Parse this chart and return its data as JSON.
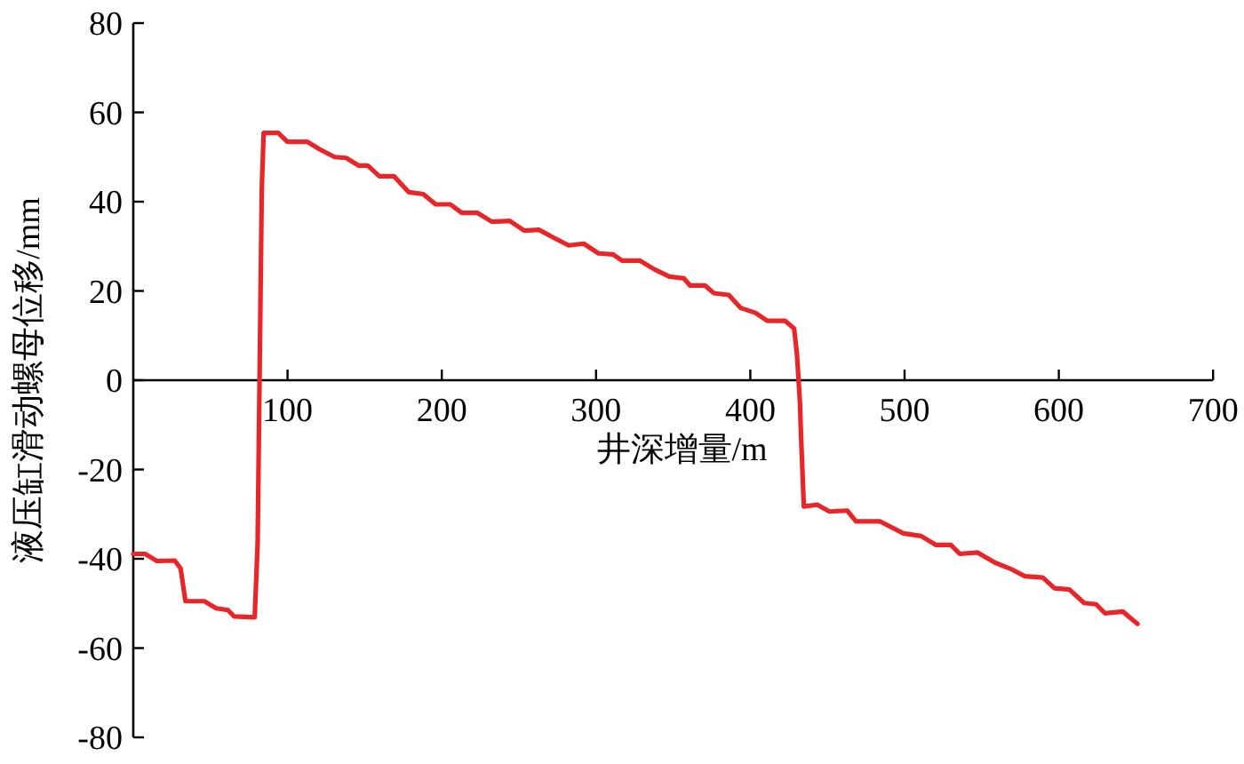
{
  "chart_data": {
    "type": "line",
    "xlabel": "井深增量/m",
    "ylabel": "液压缸滑动螺母位移/mm",
    "xlim": [
      0,
      700
    ],
    "ylim": [
      -80,
      80
    ],
    "xticks": [
      100,
      200,
      300,
      400,
      500,
      600,
      700
    ],
    "yticks": [
      -80,
      -60,
      -40,
      -20,
      0,
      20,
      40,
      60,
      80
    ],
    "series": [
      {
        "color": "#e8262a",
        "x": [
          0,
          7.7,
          15.3,
          26.9,
          30.7,
          33.8,
          46,
          53.8,
          61.4,
          65.3,
          78.7,
          80.6,
          83.3,
          84.5,
          94,
          99.9,
          113,
          121,
          130.5,
          138,
          146,
          152,
          159.5,
          169,
          178.7,
          188,
          196,
          205.5,
          213,
          223,
          232.5,
          244,
          253.5,
          263,
          272.7,
          282.3,
          292,
          301.6,
          311,
          316.8,
          328.3,
          338,
          347.6,
          357,
          361,
          370.7,
          376.4,
          386,
          393.7,
          403.3,
          411,
          422.6,
          428.4,
          430.3,
          432.2,
          432.8,
          434.7,
          443.5,
          451.3,
          462.8,
          468.5,
          483.9,
          499.2,
          510.7,
          520.4,
          530,
          535.8,
          547.3,
          558.8,
          568.4,
          578,
          589.6,
          597.2,
          606.9,
          616.4,
          624.2,
          629.9,
          641.4,
          651
        ],
        "values": [
          -38.9,
          -38.9,
          -40.5,
          -40.4,
          -42.2,
          -49.5,
          -49.5,
          -51.1,
          -51.5,
          -52.9,
          -53.1,
          -36.9,
          42.7,
          55.4,
          55.4,
          53.4,
          53.4,
          51.7,
          50,
          49.8,
          48.1,
          48.1,
          45.7,
          45.7,
          42.1,
          41.7,
          39.4,
          39.4,
          37.5,
          37.5,
          35.5,
          35.7,
          33.5,
          33.7,
          31.9,
          30.2,
          30.6,
          28.4,
          28.2,
          26.8,
          26.8,
          24.8,
          23.2,
          22.8,
          21.2,
          21.2,
          19.5,
          19.1,
          16.2,
          15.1,
          13.3,
          13.3,
          11.6,
          5.6,
          -5.1,
          -11.7,
          -28.3,
          -27.9,
          -29.4,
          -29.2,
          -31.6,
          -31.6,
          -34.3,
          -34.9,
          -36.9,
          -36.9,
          -38.9,
          -38.6,
          -40.9,
          -42.2,
          -43.9,
          -44.2,
          -46.6,
          -46.9,
          -49.9,
          -50.2,
          -52.2,
          -51.8,
          -54.6
        ]
      }
    ]
  }
}
